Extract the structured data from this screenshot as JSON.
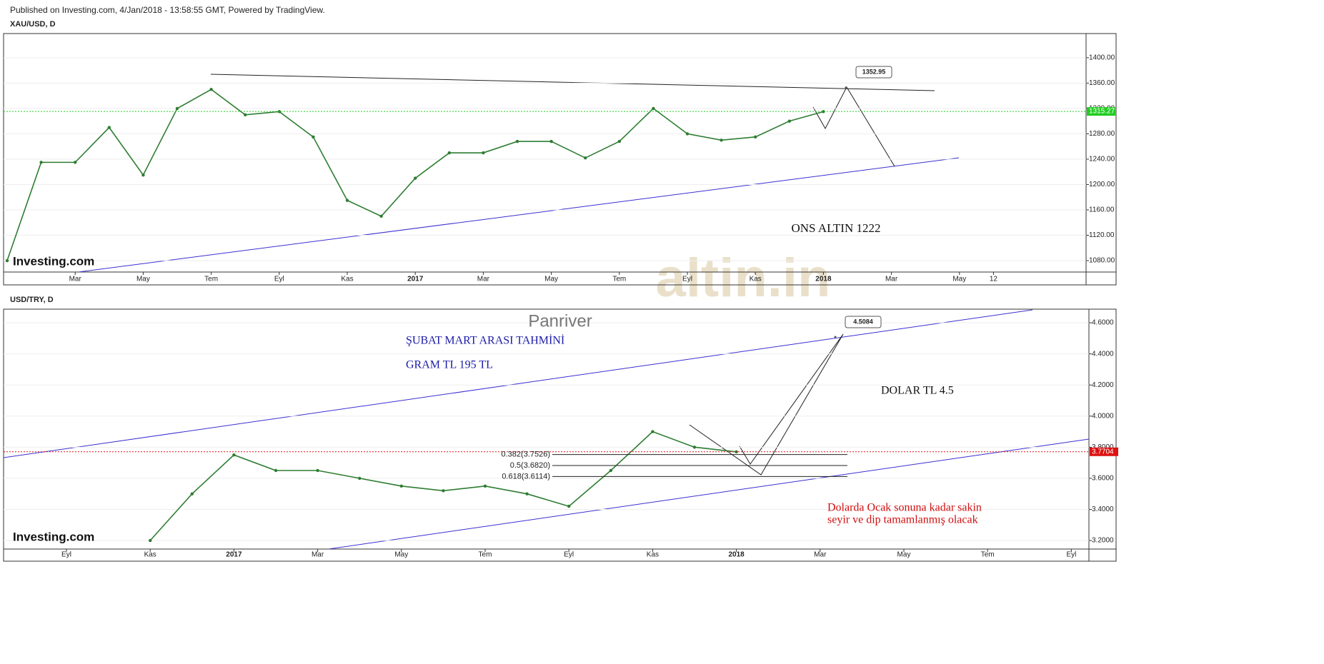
{
  "header": "Published on Investing.com, 4/Jan/2018 - 13:58:55 GMT, Powered by TradingView.",
  "watermark": "altin.in",
  "chart_data": [
    {
      "type": "line",
      "title": "XAU/USD, D",
      "categories": [
        null,
        null,
        "Mar",
        null,
        "May",
        null,
        "Tem",
        null,
        "Eyl",
        null,
        "Kas",
        null,
        "2017",
        null,
        "Mar",
        null,
        "May",
        null,
        "Tem",
        null,
        "Eyl",
        null,
        "Kas",
        null,
        "2018",
        null,
        "Mar",
        null,
        "May",
        "12"
      ],
      "values": [
        1080,
        1235,
        1235,
        1290,
        1215,
        1320,
        1350,
        1310,
        1315,
        1275,
        1175,
        1150,
        1210,
        1250,
        1250,
        1268,
        1268,
        1242,
        1268,
        1320,
        1280,
        1270,
        1275,
        1300,
        1315,
        null,
        null,
        null,
        null,
        null
      ],
      "color": "#2e7d32",
      "ylim": [
        1062,
        1437
      ],
      "yticks": [
        {
          "value": 1080,
          "label": "1080.00"
        },
        {
          "value": 1120,
          "label": "1120.00"
        },
        {
          "value": 1160,
          "label": "1160.00"
        },
        {
          "value": 1200,
          "label": "1200.00"
        },
        {
          "value": 1240,
          "label": "1240.00"
        },
        {
          "value": 1280,
          "label": "1280.00"
        },
        {
          "value": 1320,
          "label": "1320.00"
        },
        {
          "value": 1360,
          "label": "1360.00"
        },
        {
          "value": 1400,
          "label": "1400.00"
        }
      ],
      "grid": true,
      "last_price": 1315.27,
      "last_price_color": "#22cc22",
      "callout": 1352.95,
      "logo": "Investing.com",
      "annotations": [
        "ONS ALTIN 1222"
      ]
    },
    {
      "type": "line",
      "title": "USD/TRY, D",
      "categories": [
        "Eyl",
        null,
        "Kas",
        null,
        "2017",
        null,
        "Mar",
        null,
        "May",
        null,
        "Tem",
        null,
        "Eyl",
        null,
        "Kas",
        null,
        "2018",
        null,
        "Mar",
        null,
        "May",
        null,
        "Tem",
        null,
        "Eyl"
      ],
      "values": [
        null,
        null,
        3.2,
        3.5,
        3.75,
        3.65,
        3.65,
        3.6,
        3.55,
        3.52,
        3.55,
        3.5,
        3.42,
        3.65,
        3.9,
        3.8,
        3.77,
        null,
        null,
        null,
        null,
        null,
        null,
        null,
        null
      ],
      "color": "#2e7d32",
      "ylim": [
        3.145,
        4.683
      ],
      "yticks": [
        {
          "value": 3.2,
          "label": "3.2000"
        },
        {
          "value": 3.4,
          "label": "3.4000"
        },
        {
          "value": 3.6,
          "label": "3.6000"
        },
        {
          "value": 3.8,
          "label": "3.8000"
        },
        {
          "value": 4.0,
          "label": "4.0000"
        },
        {
          "value": 4.2,
          "label": "4.2000"
        },
        {
          "value": 4.4,
          "label": "4.4000"
        },
        {
          "value": 4.6,
          "label": "4.6000"
        }
      ],
      "grid": true,
      "last_price": 3.7704,
      "last_price_color": "#dd1111",
      "callout": 4.5084,
      "logo": "Investing.com",
      "fib_levels": [
        {
          "value": 3.7526,
          "label": "0.382(3.7526)"
        },
        {
          "value": 3.682,
          "label": "0.5(3.6820)"
        },
        {
          "value": 3.6114,
          "label": "0.618(3.6114)"
        }
      ],
      "annotations": [
        "Panriver",
        "ŞUBAT MART ARASI TAHMİNİ",
        "GRAM TL   195 TL",
        "DOLAR TL  4.5",
        "Dolarda Ocak sonuna kadar sakin",
        "seyir ve dip tamamlanmış olacak"
      ]
    }
  ]
}
